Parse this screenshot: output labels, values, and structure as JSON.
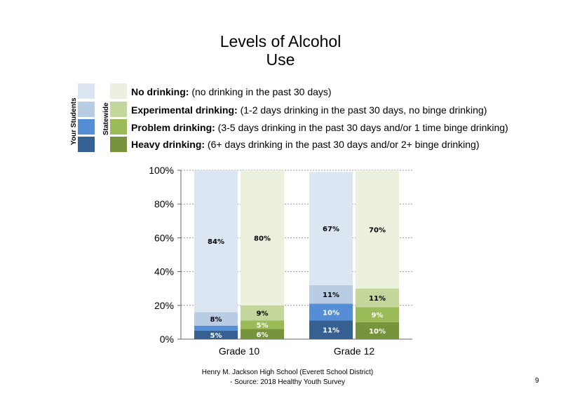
{
  "title_line1": "Levels of Alcohol",
  "title_line2": "Use",
  "legend": {
    "col_your": "Your Students",
    "col_state": "Statewide",
    "items": [
      {
        "bold": "No drinking:",
        "rest": " (no drinking in the past 30 days)"
      },
      {
        "bold": "Experimental drinking:",
        "rest": " (1-2 days drinking in the past 30 days, no binge drinking)"
      },
      {
        "bold": "Problem drinking:",
        "rest": " (3-5 days drinking in the past 30 days and/or 1 time binge drinking)"
      },
      {
        "bold": "Heavy drinking:",
        "rest": " (6+ days drinking in the past 30 days and/or 2+ binge drinking)"
      }
    ]
  },
  "colors": {
    "your": [
      "#dce6f2",
      "#b8cce4",
      "#558ed5",
      "#366092"
    ],
    "state": [
      "#ebf1de",
      "#c3d69b",
      "#9bbb59",
      "#77933c"
    ]
  },
  "chart_data": {
    "type": "bar",
    "stacked": true,
    "categories": [
      "Grade 10",
      "Grade 12"
    ],
    "series_groups": [
      "Your Students",
      "Statewide"
    ],
    "series": [
      {
        "name": "No drinking",
        "your": [
          84,
          67
        ],
        "state": [
          80,
          70
        ]
      },
      {
        "name": "Experimental drinking",
        "your": [
          8,
          11
        ],
        "state": [
          9,
          11
        ]
      },
      {
        "name": "Problem drinking",
        "your": [
          3,
          10
        ],
        "state": [
          5,
          9
        ]
      },
      {
        "name": "Heavy drinking",
        "your": [
          5,
          11
        ],
        "state": [
          6,
          10
        ]
      }
    ],
    "labels": {
      "your": [
        [
          "84%",
          "8%",
          "",
          "5%"
        ],
        [
          "67%",
          "11%",
          "10%",
          "11%"
        ]
      ],
      "state": [
        [
          "80%",
          "9%",
          "5%",
          "6%"
        ],
        [
          "70%",
          "11%",
          "9%",
          "10%"
        ]
      ]
    },
    "yticks": [
      "0%",
      "20%",
      "40%",
      "60%",
      "80%",
      "100%"
    ],
    "ylim": [
      0,
      100
    ],
    "grid": true
  },
  "footer": {
    "line1": "Henry M.  Jackson High  School (Everett School District)",
    "line2": "- Source: 2018 Healthy  Youth Survey"
  },
  "page_number": "9"
}
